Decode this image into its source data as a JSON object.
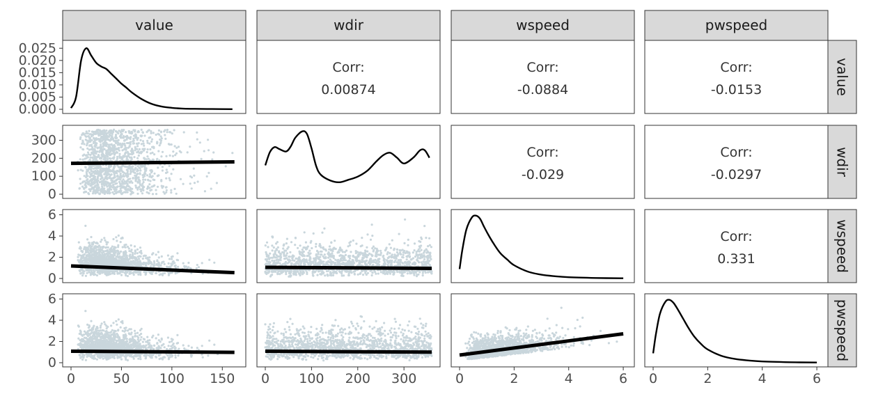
{
  "chart_data": {
    "type": "scatter",
    "variables": [
      "value",
      "wdir",
      "wspeed",
      "pwspeed"
    ],
    "axes": {
      "value": {
        "lim": [
          0,
          165
        ],
        "ticks": [
          0,
          50,
          100,
          150
        ],
        "tick_labels": [
          "0",
          "50",
          "100",
          "150"
        ]
      },
      "wdir": {
        "lim": [
          0,
          360
        ],
        "ticks": [
          0,
          100,
          200,
          300
        ],
        "tick_labels": [
          "0",
          "100",
          "200",
          "300"
        ]
      },
      "wspeed": {
        "lim": [
          0,
          6.1
        ],
        "ticks": [
          0,
          2,
          4,
          6
        ],
        "tick_labels": [
          "0",
          "2",
          "4",
          "6"
        ]
      },
      "pwspeed": {
        "lim": [
          0,
          6.1
        ],
        "ticks": [
          0,
          2,
          4,
          6
        ],
        "tick_labels": [
          "0",
          "2",
          "4",
          "6"
        ]
      }
    },
    "value_density_axis": {
      "lim": [
        0,
        0.0265
      ],
      "ticks": [
        0,
        0.005,
        0.01,
        0.015,
        0.02,
        0.025
      ],
      "tick_labels": [
        "0.000",
        "0.005",
        "0.010",
        "0.015",
        "0.020",
        "0.025"
      ]
    },
    "correlations": [
      {
        "row": "value",
        "col": "wdir",
        "label": "Corr:",
        "value": "0.00874"
      },
      {
        "row": "value",
        "col": "wspeed",
        "label": "Corr:",
        "value": "-0.0884"
      },
      {
        "row": "value",
        "col": "pwspeed",
        "label": "Corr:",
        "value": "-0.0153"
      },
      {
        "row": "wdir",
        "col": "wspeed",
        "label": "Corr:",
        "value": "-0.029"
      },
      {
        "row": "wdir",
        "col": "pwspeed",
        "label": "Corr:",
        "value": "-0.0297"
      },
      {
        "row": "wspeed",
        "col": "pwspeed",
        "label": "Corr:",
        "value": "0.331"
      }
    ],
    "densities": {
      "value": {
        "x": [
          0,
          5,
          10,
          15,
          20,
          25,
          30,
          35,
          40,
          45,
          50,
          55,
          60,
          70,
          80,
          90,
          100,
          110,
          120,
          140,
          160
        ],
        "y": [
          0.0005,
          0.005,
          0.02,
          0.025,
          0.022,
          0.019,
          0.0175,
          0.0165,
          0.0145,
          0.0125,
          0.0105,
          0.0088,
          0.007,
          0.0042,
          0.0022,
          0.0011,
          0.0006,
          0.0003,
          0.0002,
          0.0001,
          5e-05
        ]
      },
      "wdir": {
        "x": [
          0,
          10,
          20,
          30,
          45,
          55,
          65,
          80,
          90,
          100,
          110,
          120,
          140,
          160,
          180,
          200,
          220,
          240,
          255,
          270,
          285,
          300,
          320,
          335,
          345,
          355
        ],
        "y": [
          0.46,
          0.67,
          0.75,
          0.72,
          0.68,
          0.76,
          0.9,
          1.0,
          0.96,
          0.73,
          0.45,
          0.31,
          0.22,
          0.19,
          0.23,
          0.28,
          0.37,
          0.52,
          0.62,
          0.66,
          0.58,
          0.49,
          0.58,
          0.7,
          0.7,
          0.58
        ]
      },
      "wspeed": {
        "x": [
          0,
          0.1,
          0.25,
          0.45,
          0.6,
          0.75,
          0.9,
          1.1,
          1.3,
          1.5,
          1.75,
          2.0,
          2.5,
          3.0,
          3.5,
          4.0,
          5.0,
          6.0
        ],
        "y": [
          0.15,
          0.45,
          0.78,
          0.97,
          1.0,
          0.95,
          0.82,
          0.66,
          0.52,
          0.4,
          0.3,
          0.21,
          0.11,
          0.06,
          0.035,
          0.02,
          0.008,
          0.003
        ]
      },
      "pwspeed": {
        "x": [
          0,
          0.1,
          0.25,
          0.45,
          0.6,
          0.75,
          0.9,
          1.1,
          1.3,
          1.5,
          1.75,
          2.0,
          2.5,
          3.0,
          3.5,
          4.0,
          5.0,
          6.0
        ],
        "y": [
          0.15,
          0.45,
          0.78,
          0.97,
          1.0,
          0.95,
          0.85,
          0.7,
          0.55,
          0.42,
          0.3,
          0.21,
          0.11,
          0.06,
          0.035,
          0.02,
          0.008,
          0.003
        ]
      }
    },
    "regressions": [
      {
        "row": "wdir",
        "col": "value",
        "x": [
          0,
          162
        ],
        "y": [
          172,
          180
        ]
      },
      {
        "row": "wspeed",
        "col": "value",
        "x": [
          0,
          162
        ],
        "y": [
          1.18,
          0.55
        ]
      },
      {
        "row": "wspeed",
        "col": "wdir",
        "x": [
          0,
          360
        ],
        "y": [
          1.05,
          0.95
        ]
      },
      {
        "row": "pwspeed",
        "col": "value",
        "x": [
          0,
          162
        ],
        "y": [
          1.08,
          0.98
        ]
      },
      {
        "row": "pwspeed",
        "col": "wdir",
        "x": [
          0,
          360
        ],
        "y": [
          1.08,
          1.0
        ]
      },
      {
        "row": "pwspeed",
        "col": "wspeed",
        "x": [
          0,
          6
        ],
        "y": [
          0.72,
          2.72
        ]
      }
    ],
    "colors": {
      "points": "#c9d6dc",
      "strip": "#d9d9d9",
      "line": "#000000"
    }
  }
}
